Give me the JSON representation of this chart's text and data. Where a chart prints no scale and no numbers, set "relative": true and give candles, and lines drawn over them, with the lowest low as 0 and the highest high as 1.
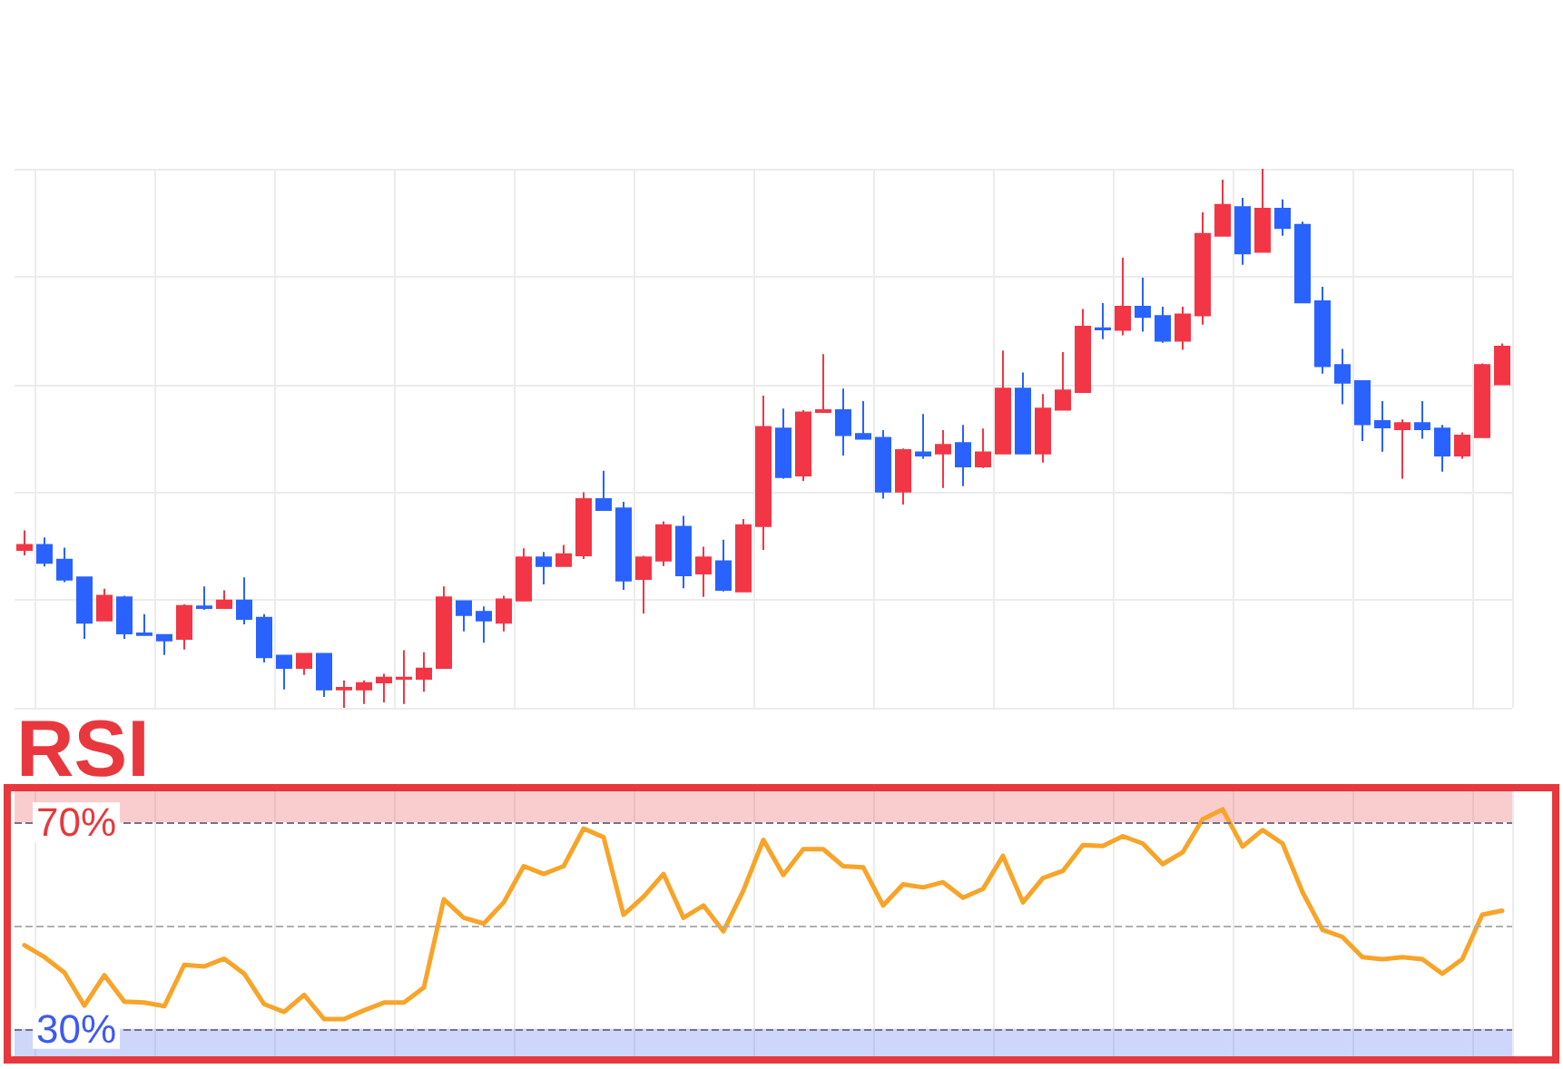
{
  "chart_data": [
    {
      "type": "candlestick",
      "relative": true,
      "grid": true,
      "tick_labels": false,
      "categories": [
        null,
        null,
        null,
        null,
        null,
        null,
        null,
        null,
        null,
        null,
        null,
        null,
        null,
        null,
        null,
        null,
        null,
        null,
        null,
        null,
        null,
        null,
        null,
        null,
        null,
        null,
        null,
        null,
        null,
        null,
        null,
        null,
        null,
        null,
        null,
        null,
        null,
        null,
        null,
        null,
        null,
        null,
        null,
        null,
        null,
        null,
        null,
        null,
        null,
        null,
        null,
        null,
        null,
        null,
        null,
        null,
        null,
        null,
        null,
        null,
        null,
        null,
        null,
        null,
        null,
        null,
        null,
        null,
        null,
        null,
        null,
        null,
        null,
        null,
        null
      ],
      "ohlc": [
        [
          0.293,
          0.329,
          0.283,
          0.302
        ],
        [
          0.302,
          0.316,
          0.262,
          0.269
        ],
        [
          0.275,
          0.297,
          0.233,
          0.238
        ],
        [
          0.242,
          0.242,
          0.128,
          0.158
        ],
        [
          0.162,
          0.221,
          0.162,
          0.208
        ],
        [
          0.205,
          0.208,
          0.128,
          0.138
        ],
        [
          0.138,
          0.174,
          0.135,
          0.135
        ],
        [
          0.135,
          0.135,
          0.098,
          0.125
        ],
        [
          0.128,
          0.192,
          0.108,
          0.189
        ],
        [
          0.188,
          0.225,
          0.182,
          0.185
        ],
        [
          0.185,
          0.218,
          0.185,
          0.199
        ],
        [
          0.199,
          0.242,
          0.155,
          0.165
        ],
        [
          0.167,
          0.174,
          0.084,
          0.094
        ],
        [
          0.097,
          0.097,
          0.034,
          0.074
        ],
        [
          0.074,
          0.1,
          0.061,
          0.1
        ],
        [
          0.1,
          0.1,
          0.02,
          0.034
        ],
        [
          0.034,
          0.051,
          0,
          0.037
        ],
        [
          0.034,
          0.051,
          0.007,
          0.046
        ],
        [
          0.047,
          0.063,
          0.01,
          0.056
        ],
        [
          0.054,
          0.107,
          0.007,
          0.056
        ],
        [
          0.054,
          0.103,
          0.03,
          0.073
        ],
        [
          0.074,
          0.225,
          0.074,
          0.205
        ],
        [
          0.198,
          0.198,
          0.142,
          0.172
        ],
        [
          0.178,
          0.188,
          0.121,
          0.162
        ],
        [
          0.158,
          0.208,
          0.142,
          0.201
        ],
        [
          0.199,
          0.296,
          0.199,
          0.279
        ],
        [
          0.279,
          0.289,
          0.229,
          0.263
        ],
        [
          0.263,
          0.302,
          0.263,
          0.285
        ],
        [
          0.283,
          0.4,
          0.276,
          0.387
        ],
        [
          0.387,
          0.44,
          0.367,
          0.367
        ],
        [
          0.37,
          0.382,
          0.219,
          0.236
        ],
        [
          0.239,
          0.282,
          0.175,
          0.279
        ],
        [
          0.273,
          0.346,
          0.263,
          0.339
        ],
        [
          0.336,
          0.356,
          0.222,
          0.246
        ],
        [
          0.249,
          0.299,
          0.206,
          0.279
        ],
        [
          0.272,
          0.312,
          0.216,
          0.219
        ],
        [
          0.216,
          0.35,
          0.216,
          0.339
        ],
        [
          0.337,
          0.579,
          0.293,
          0.521
        ],
        [
          0.518,
          0.555,
          0.425,
          0.428
        ],
        [
          0.431,
          0.552,
          0.421,
          0.548
        ],
        [
          0.549,
          0.656,
          0.549,
          0.552
        ],
        [
          0.552,
          0.592,
          0.468,
          0.506
        ],
        [
          0.508,
          0.569,
          0.499,
          0.499
        ],
        [
          0.501,
          0.515,
          0.388,
          0.401
        ],
        [
          0.401,
          0.481,
          0.377,
          0.478
        ],
        [
          0.474,
          0.545,
          0.462,
          0.468
        ],
        [
          0.472,
          0.515,
          0.408,
          0.488
        ],
        [
          0.491,
          0.525,
          0.411,
          0.448
        ],
        [
          0.448,
          0.518,
          0.445,
          0.474
        ],
        [
          0.472,
          0.663,
          0.472,
          0.592
        ],
        [
          0.592,
          0.622,
          0.472,
          0.472
        ],
        [
          0.472,
          0.582,
          0.455,
          0.555
        ],
        [
          0.553,
          0.66,
          0.553,
          0.589
        ],
        [
          0.586,
          0.74,
          0.586,
          0.707
        ],
        [
          0.704,
          0.751,
          0.684,
          0.702
        ],
        [
          0.701,
          0.835,
          0.691,
          0.744
        ],
        [
          0.744,
          0.798,
          0.698,
          0.725
        ],
        [
          0.727,
          0.744,
          0.677,
          0.681
        ],
        [
          0.681,
          0.744,
          0.664,
          0.73
        ],
        [
          0.728,
          0.919,
          0.711,
          0.879
        ],
        [
          0.876,
          0.98,
          0.876,
          0.933
        ],
        [
          0.929,
          0.946,
          0.822,
          0.843
        ],
        [
          0.846,
          1,
          0.846,
          0.926
        ],
        [
          0.926,
          0.943,
          0.876,
          0.89
        ],
        [
          0.896,
          0.902,
          0.752,
          0.752
        ],
        [
          0.754,
          0.781,
          0.62,
          0.634
        ],
        [
          0.636,
          0.666,
          0.563,
          0.603
        ],
        [
          0.606,
          0.606,
          0.495,
          0.526
        ],
        [
          0.532,
          0.569,
          0.475,
          0.52
        ],
        [
          0.517,
          0.535,
          0.425,
          0.528
        ],
        [
          0.528,
          0.569,
          0.499,
          0.517
        ],
        [
          0.518,
          0.525,
          0.438,
          0.468
        ],
        [
          0.468,
          0.511,
          0.462,
          0.505
        ],
        [
          0.502,
          0.639,
          0.502,
          0.636
        ],
        [
          0.6,
          0.676,
          0.6,
          0.67
        ]
      ],
      "colors": [
        "#f23645",
        "#2962ff",
        "#2962ff",
        "#2962ff",
        "#f23645",
        "#2962ff",
        "#2962ff",
        "#2962ff",
        "#f23645",
        "#2962ff",
        "#f23645",
        "#2962ff",
        "#2962ff",
        "#2962ff",
        "#f23645",
        "#2962ff",
        "#f23645",
        "#f23645",
        "#f23645",
        "#f23645",
        "#f23645",
        "#f23645",
        "#2962ff",
        "#2962ff",
        "#f23645",
        "#f23645",
        "#2962ff",
        "#f23645",
        "#f23645",
        "#2962ff",
        "#2962ff",
        "#f23645",
        "#f23645",
        "#2962ff",
        "#f23645",
        "#2962ff",
        "#f23645",
        "#f23645",
        "#2962ff",
        "#f23645",
        "#f23645",
        "#2962ff",
        "#2962ff",
        "#2962ff",
        "#f23645",
        "#2962ff",
        "#f23645",
        "#2962ff",
        "#f23645",
        "#f23645",
        "#2962ff",
        "#f23645",
        "#f23645",
        "#f23645",
        "#2962ff",
        "#f23645",
        "#2962ff",
        "#2962ff",
        "#f23645",
        "#f23645",
        "#f23645",
        "#2962ff",
        "#f23645",
        "#2962ff",
        "#2962ff",
        "#2962ff",
        "#2962ff",
        "#2962ff",
        "#2962ff",
        "#f23645",
        "#2962ff",
        "#2962ff",
        "#f23645",
        "#f23645",
        "#f23645"
      ]
    },
    {
      "type": "line",
      "title": "RSI",
      "grid": "x",
      "tick_labels": "y",
      "color": "#f7a428",
      "categories": [
        null,
        null,
        null,
        null,
        null,
        null,
        null,
        null,
        null,
        null,
        null,
        null,
        null,
        null,
        null,
        null,
        null,
        null,
        null,
        null,
        null,
        null,
        null,
        null,
        null,
        null,
        null,
        null,
        null,
        null,
        null,
        null,
        null,
        null,
        null,
        null,
        null,
        null,
        null,
        null,
        null,
        null,
        null,
        null,
        null,
        null,
        null,
        null,
        null,
        null,
        null,
        null,
        null,
        null,
        null,
        null,
        null,
        null,
        null,
        null,
        null,
        null,
        null,
        null,
        null,
        null,
        null,
        null,
        null,
        null,
        null,
        null,
        null,
        null,
        null
      ],
      "values": [
        46.2,
        43.9,
        40.9,
        34.5,
        40.4,
        35.3,
        35.1,
        34.4,
        42.4,
        42.1,
        43.6,
        40.7,
        34.8,
        33.3,
        36.6,
        31.9,
        31.9,
        33.6,
        35.1,
        35.1,
        38.0,
        55.1,
        51.5,
        50.4,
        54.5,
        61.5,
        60.0,
        61.5,
        68.8,
        67.1,
        52.1,
        55.6,
        60.0,
        51.5,
        53.9,
        48.9,
        56.8,
        66.6,
        59.8,
        64.8,
        64.8,
        61.5,
        61.3,
        53.9,
        58.0,
        57.4,
        58.4,
        55.4,
        57.1,
        63.5,
        54.5,
        59.2,
        60.6,
        65.6,
        65.4,
        67.3,
        65.9,
        61.9,
        64.2,
        70.6,
        72.5,
        65.3,
        68.5,
        65.9,
        56.5,
        49.2,
        47.8,
        43.9,
        43.5,
        43.9,
        43.5,
        40.7,
        43.5,
        52.1,
        52.9
      ],
      "ylim": [
        24,
        76
      ],
      "yticks": [
        {
          "value": 70,
          "label": "70%"
        },
        {
          "value": 30,
          "label": "30%"
        }
      ],
      "bands": [
        {
          "axis": "y",
          "from": 70,
          "to": 76,
          "color": "#e8383d"
        },
        {
          "axis": "y",
          "from": 24,
          "to": 30,
          "color": "#3d5af1"
        }
      ],
      "ref_lines": [
        {
          "axis": "y",
          "value": 70,
          "color": "#7a6f88",
          "line_style": "dashed"
        },
        {
          "axis": "y",
          "value": 50,
          "color": "#b0b0b0",
          "line_style": "dashed"
        },
        {
          "axis": "y",
          "value": 30,
          "color": "#7a6f88",
          "line_style": "dashed"
        }
      ]
    }
  ]
}
